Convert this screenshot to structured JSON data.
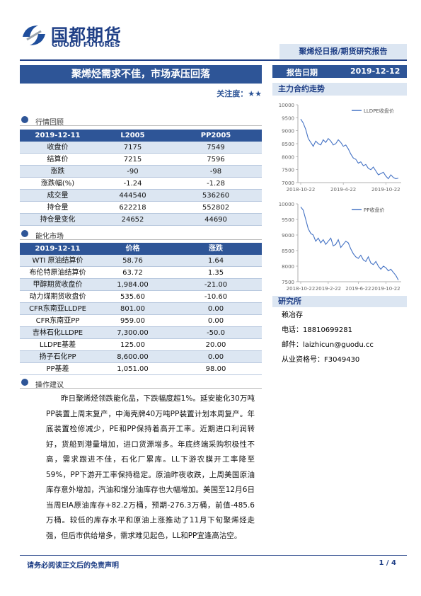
{
  "header": {
    "logo_cn": "国都期货",
    "logo_en": "GUODU FUTURES",
    "report_type": "聚烯烃日报/期货研究报告"
  },
  "title": "聚烯烃需求不佳，市场承压回落",
  "attention": "关注度：★★",
  "report_date_label": "报告日期",
  "report_date": "2019-12-12",
  "market_review": {
    "heading": "行情回顾",
    "columns": [
      "2019-12-11",
      "L2005",
      "PP2005"
    ],
    "rows": [
      [
        "收盘价",
        "7175",
        "7549"
      ],
      [
        "结算价",
        "7215",
        "7596"
      ],
      [
        "涨跌",
        "-90",
        "-98"
      ],
      [
        "涨跌幅(%)",
        "-1.24",
        "-1.28"
      ],
      [
        "成交量",
        "444540",
        "536260"
      ],
      [
        "持仓量",
        "622218",
        "552802"
      ],
      [
        "持仓量变化",
        "24652",
        "44690"
      ]
    ]
  },
  "chemical_market": {
    "heading": "能化市场",
    "columns": [
      "2019-12-11",
      "价格",
      "涨跌"
    ],
    "rows": [
      [
        "WTI 原油结算价",
        "58.76",
        "1.64"
      ],
      [
        "布伦特原油结算价",
        "63.72",
        "1.35"
      ],
      [
        "甲醇期货收盘价",
        "1,984.00",
        "-21.00"
      ],
      [
        "动力煤期货收盘价",
        "535.60",
        "-10.60"
      ],
      [
        "CFR东南亚LLDPE",
        "801.00",
        "0.00"
      ],
      [
        "CFR东南亚PP",
        "959.00",
        "0.00"
      ],
      [
        "吉林石化LLDPE",
        "7,300.00",
        "-50.0"
      ],
      [
        "LLDPE基差",
        "125.00",
        "20.00"
      ],
      [
        "扬子石化PP",
        "8,600.00",
        "0.00"
      ],
      [
        "PP基差",
        "1,051.00",
        "98.00"
      ]
    ]
  },
  "advice": {
    "heading": "操作建议",
    "text": "昨日聚烯烃领跌能化品，下跌幅度超1%。延安能化30万吨PP装置上周末复产，中海壳牌40万吨PP装置计划本周复产。年底装置检修减少，PE和PP保持着高开工率。近期进口利润转好，货船到港量增加，进口货源增多。年底终端采购积极性不高，需求跟进不佳，石化厂累库。LL下游农膜开工率降至59%，PP下游开工率保持稳定。原油昨夜收跌，上周美国原油库存意外增加，汽油和馏分油库存也大幅增加。美国至12月6日当周EIA原油库存+82.2万桶，预期-276.3万桶，前值-485.6万桶。较低的库存水平和原油上涨推动了11月下旬聚烯烃走强，但后市供给增多，需求难见起色，LL和PP宜逢高沽空。"
  },
  "main_contract_heading": "主力合约走势",
  "chart_data": [
    {
      "type": "line",
      "categories": [
        "2018-10-22",
        null,
        null,
        null,
        null,
        null,
        null,
        null,
        null,
        null,
        null,
        null,
        null,
        null,
        null,
        null,
        null,
        "2019-4-22",
        null,
        null,
        null,
        null,
        null,
        null,
        null,
        null,
        null,
        null,
        null,
        null,
        null,
        null,
        null,
        null,
        "2019-10-22",
        null,
        null,
        null,
        null,
        null
      ],
      "series": [
        {
          "name": "LLDPE收盘价",
          "color": "#4472c4",
          "values": [
            9450,
            9300,
            9050,
            8700,
            8550,
            8400,
            8600,
            8500,
            8450,
            8650,
            8550,
            8700,
            8600,
            8450,
            8500,
            8650,
            8550,
            8400,
            8450,
            8300,
            8100,
            7950,
            7900,
            7750,
            7800,
            7650,
            7700,
            7550,
            7500,
            7600,
            7450,
            7300,
            7350,
            7400,
            7250,
            7150,
            7300,
            7200,
            7150,
            7175
          ]
        }
      ],
      "ylim": [
        7000,
        10000
      ],
      "yticks": [
        7000,
        7500,
        8000,
        8500,
        9000,
        9500,
        10000
      ],
      "legend": "upper right",
      "grid": false
    },
    {
      "type": "line",
      "categories": [
        "2018-10-22",
        null,
        null,
        null,
        null,
        null,
        null,
        null,
        null,
        null,
        null,
        "2019-2-22",
        null,
        null,
        null,
        null,
        null,
        null,
        null,
        null,
        null,
        null,
        null,
        "2019-6-22",
        null,
        null,
        null,
        null,
        null,
        null,
        null,
        null,
        null,
        null,
        "2019-10-22",
        null,
        null,
        null,
        null,
        null
      ],
      "series": [
        {
          "name": "PP收盘价",
          "color": "#4472c4",
          "values": [
            9900,
            9800,
            9500,
            9200,
            9050,
            9000,
            8800,
            8900,
            8750,
            8850,
            8700,
            8800,
            8900,
            8650,
            8700,
            8850,
            8600,
            8700,
            8800,
            8750,
            8550,
            8400,
            8300,
            8250,
            8350,
            8200,
            8150,
            8300,
            8100,
            8050,
            8150,
            8000,
            7900,
            8000,
            7950,
            7850,
            7900,
            7800,
            7700,
            7549
          ]
        }
      ],
      "ylim": [
        7500,
        10000
      ],
      "yticks": [
        7500,
        8000,
        8500,
        9000,
        9500,
        10000
      ],
      "legend": "upper right",
      "grid": false
    }
  ],
  "research": {
    "heading": "研究所",
    "analyst": "赖冶存",
    "phone": "电话：18810699281",
    "email": "邮件：laizhicun@guodu.cc",
    "license": "从业资格号：F3049430"
  },
  "footer": {
    "disclaimer": "请务必阅读正文后的免责声明",
    "page": "1 / 4"
  }
}
